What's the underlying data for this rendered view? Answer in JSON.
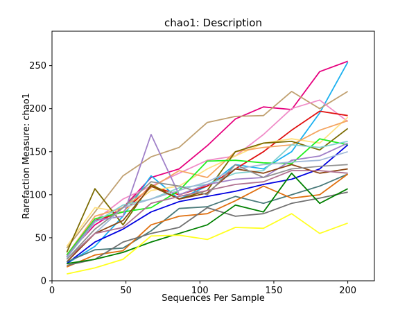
{
  "chart_data": {
    "type": "line",
    "title": "chao1: Description",
    "xlabel": "Sequences Per Sample",
    "ylabel": "Rarefaction Measure: chao1",
    "xlim": [
      0,
      218
    ],
    "ylim": [
      0,
      290
    ],
    "xticks": [
      0,
      50,
      100,
      150,
      200
    ],
    "yticks": [
      0,
      50,
      100,
      150,
      200,
      250
    ],
    "grid": false,
    "x": [
      10,
      29,
      48,
      67,
      86,
      105,
      124,
      143,
      162,
      181,
      200
    ],
    "series": [
      {
        "color": "#e6007e",
        "values": [
          30,
          65,
          85,
          120,
          130,
          157,
          188,
          202,
          199,
          243,
          255
        ]
      },
      {
        "color": "#1ab0f0",
        "values": [
          20,
          40,
          75,
          122,
          95,
          110,
          135,
          130,
          150,
          195,
          254
        ]
      },
      {
        "color": "#c0a070",
        "values": [
          38,
          80,
          122,
          144,
          155,
          184,
          191,
          192,
          220,
          200,
          220
        ]
      },
      {
        "color": "#f08cc8",
        "values": [
          28,
          70,
          95,
          110,
          125,
          140,
          145,
          170,
          200,
          210,
          185
        ]
      },
      {
        "color": "#e01010",
        "values": [
          28,
          70,
          80,
          110,
          100,
          110,
          130,
          150,
          175,
          197,
          192
        ]
      },
      {
        "color": "#ffe080",
        "values": [
          40,
          85,
          80,
          105,
          110,
          130,
          145,
          160,
          165,
          160,
          190
        ]
      },
      {
        "color": "#f4a460",
        "values": [
          30,
          75,
          85,
          108,
          128,
          120,
          150,
          155,
          158,
          175,
          186
        ]
      },
      {
        "color": "#7a6a00",
        "values": [
          33,
          107,
          65,
          112,
          95,
          105,
          150,
          160,
          162,
          152,
          177
        ]
      },
      {
        "color": "#20f020",
        "values": [
          30,
          72,
          80,
          85,
          105,
          139,
          140,
          137,
          136,
          165,
          158
        ]
      },
      {
        "color": "#80d0d0",
        "values": [
          27,
          68,
          88,
          95,
          108,
          112,
          125,
          128,
          158,
          155,
          162
        ]
      },
      {
        "color": "#a080c8",
        "values": [
          28,
          70,
          75,
          170,
          100,
          112,
          118,
          120,
          140,
          145,
          160
        ]
      },
      {
        "color": "#0000e0",
        "values": [
          20,
          45,
          60,
          80,
          92,
          98,
          104,
          112,
          118,
          130,
          158
        ]
      },
      {
        "color": "#a0b8d8",
        "values": [
          25,
          55,
          85,
          95,
          105,
          115,
          130,
          135,
          138,
          140,
          150
        ]
      },
      {
        "color": "#8b4513",
        "values": [
          22,
          55,
          70,
          110,
          95,
          102,
          130,
          125,
          135,
          125,
          130
        ]
      },
      {
        "color": "#b07090",
        "values": [
          25,
          55,
          62,
          90,
          98,
          105,
          112,
          115,
          128,
          128,
          125
        ]
      },
      {
        "color": "#909090",
        "values": [
          25,
          60,
          85,
          115,
          110,
          100,
          135,
          120,
          130,
          133,
          135
        ]
      },
      {
        "color": "#4a7a7a",
        "values": [
          22,
          36,
          38,
          58,
          84,
          86,
          98,
          90,
          100,
          110,
          124
        ]
      },
      {
        "color": "#e07010",
        "values": [
          16,
          30,
          35,
          65,
          75,
          78,
          93,
          110,
          96,
          100,
          124
        ]
      },
      {
        "color": "#707070",
        "values": [
          18,
          25,
          45,
          55,
          62,
          85,
          75,
          78,
          90,
          96,
          103
        ]
      },
      {
        "color": "#008000",
        "values": [
          20,
          25,
          33,
          45,
          55,
          65,
          88,
          80,
          125,
          90,
          107
        ]
      },
      {
        "color": "#ffff20",
        "values": [
          8,
          15,
          25,
          52,
          53,
          48,
          62,
          61,
          78,
          55,
          67
        ]
      }
    ]
  }
}
